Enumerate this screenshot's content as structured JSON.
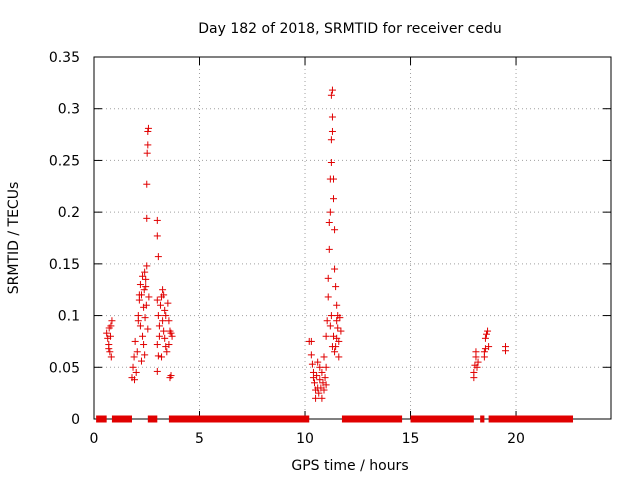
{
  "chart_data": {
    "type": "scatter",
    "title": "Day 182 of 2018, SRMTID for receiver cedu",
    "xlabel": "GPS time / hours",
    "ylabel": "SRMTID / TECUs",
    "xlim": [
      0,
      24.5
    ],
    "ylim": [
      0,
      0.35
    ],
    "x_ticks": [
      0,
      5,
      10,
      15,
      20
    ],
    "x_tick_labels": [
      "0",
      "5",
      "10",
      "15",
      "20"
    ],
    "y_ticks": [
      0,
      0.05,
      0.1,
      0.15,
      0.2,
      0.25,
      0.3,
      0.35
    ],
    "y_tick_labels": [
      "0",
      "0.05",
      "0.1",
      "0.15",
      "0.2",
      "0.25",
      "0.3",
      "0.35"
    ],
    "grid": true,
    "marker": "+",
    "color": "#e00000",
    "series": [
      {
        "name": "SRMTID",
        "points": [
          [
            0.6,
            0.083
          ],
          [
            0.65,
            0.078
          ],
          [
            0.7,
            0.072
          ],
          [
            0.72,
            0.088
          ],
          [
            0.75,
            0.065
          ],
          [
            0.8,
            0.09
          ],
          [
            0.82,
            0.06
          ],
          [
            0.85,
            0.095
          ],
          [
            0.7,
            0.068
          ],
          [
            0.78,
            0.08
          ],
          [
            1.8,
            0.04
          ],
          [
            1.85,
            0.05
          ],
          [
            1.9,
            0.06
          ],
          [
            1.95,
            0.075
          ],
          [
            2.0,
            0.045
          ],
          [
            1.92,
            0.038
          ],
          [
            2.05,
            0.065
          ],
          [
            2.1,
            0.1
          ],
          [
            2.15,
            0.115
          ],
          [
            2.2,
            0.13
          ],
          [
            2.25,
            0.12
          ],
          [
            2.3,
            0.138
          ],
          [
            2.35,
            0.108
          ],
          [
            2.4,
            0.142
          ],
          [
            2.45,
            0.135
          ],
          [
            2.2,
            0.09
          ],
          [
            2.3,
            0.08
          ],
          [
            2.35,
            0.072
          ],
          [
            2.4,
            0.062
          ],
          [
            2.25,
            0.056
          ],
          [
            2.1,
            0.095
          ],
          [
            2.15,
            0.12
          ],
          [
            2.38,
            0.125
          ],
          [
            2.45,
            0.128
          ],
          [
            2.5,
            0.148
          ],
          [
            2.5,
            0.194
          ],
          [
            2.5,
            0.227
          ],
          [
            2.52,
            0.257
          ],
          [
            2.55,
            0.265
          ],
          [
            2.55,
            0.278
          ],
          [
            2.58,
            0.281
          ],
          [
            2.55,
            0.087
          ],
          [
            2.6,
            0.118
          ],
          [
            2.48,
            0.11
          ],
          [
            2.42,
            0.098
          ],
          [
            3.0,
            0.192
          ],
          [
            3.0,
            0.177
          ],
          [
            3.05,
            0.157
          ],
          [
            3.0,
            0.115
          ],
          [
            3.05,
            0.1
          ],
          [
            3.1,
            0.09
          ],
          [
            3.0,
            0.072
          ],
          [
            3.05,
            0.061
          ],
          [
            3.0,
            0.046
          ],
          [
            3.1,
            0.08
          ],
          [
            3.2,
            0.118
          ],
          [
            3.25,
            0.125
          ],
          [
            3.3,
            0.12
          ],
          [
            3.35,
            0.105
          ],
          [
            3.4,
            0.1
          ],
          [
            3.3,
            0.085
          ],
          [
            3.35,
            0.078
          ],
          [
            3.4,
            0.07
          ],
          [
            3.45,
            0.065
          ],
          [
            3.5,
            0.112
          ],
          [
            3.55,
            0.095
          ],
          [
            3.6,
            0.085
          ],
          [
            3.65,
            0.083
          ],
          [
            3.7,
            0.08
          ],
          [
            3.55,
            0.072
          ],
          [
            3.6,
            0.04
          ],
          [
            3.65,
            0.042
          ],
          [
            3.2,
            0.06
          ],
          [
            3.15,
            0.11
          ],
          [
            3.25,
            0.095
          ],
          [
            10.2,
            0.075
          ],
          [
            10.3,
            0.062
          ],
          [
            10.35,
            0.053
          ],
          [
            10.4,
            0.045
          ],
          [
            10.45,
            0.035
          ],
          [
            10.5,
            0.028
          ],
          [
            10.5,
            0.02
          ],
          [
            10.55,
            0.042
          ],
          [
            10.6,
            0.03
          ],
          [
            10.6,
            0.055
          ],
          [
            10.65,
            0.025
          ],
          [
            10.7,
            0.038
          ],
          [
            10.75,
            0.03
          ],
          [
            10.8,
            0.045
          ],
          [
            10.8,
            0.02
          ],
          [
            10.85,
            0.035
          ],
          [
            10.9,
            0.028
          ],
          [
            10.95,
            0.04
          ],
          [
            11.0,
            0.05
          ],
          [
            11.0,
            0.033
          ],
          [
            10.4,
            0.04
          ],
          [
            10.7,
            0.05
          ],
          [
            10.9,
            0.06
          ],
          [
            10.3,
            0.075
          ],
          [
            11.0,
            0.08
          ],
          [
            11.05,
            0.095
          ],
          [
            11.1,
            0.118
          ],
          [
            11.1,
            0.136
          ],
          [
            11.15,
            0.164
          ],
          [
            11.15,
            0.19
          ],
          [
            11.2,
            0.2
          ],
          [
            11.2,
            0.232
          ],
          [
            11.25,
            0.248
          ],
          [
            11.25,
            0.27
          ],
          [
            11.3,
            0.278
          ],
          [
            11.3,
            0.292
          ],
          [
            11.3,
            0.318
          ],
          [
            11.25,
            0.313
          ],
          [
            11.35,
            0.232
          ],
          [
            11.35,
            0.213
          ],
          [
            11.4,
            0.183
          ],
          [
            11.4,
            0.145
          ],
          [
            11.45,
            0.128
          ],
          [
            11.5,
            0.11
          ],
          [
            11.5,
            0.095
          ],
          [
            11.55,
            0.088
          ],
          [
            11.6,
            0.075
          ],
          [
            11.6,
            0.06
          ],
          [
            11.65,
            0.098
          ],
          [
            11.7,
            0.085
          ],
          [
            11.2,
            0.09
          ],
          [
            11.25,
            0.1
          ],
          [
            11.3,
            0.07
          ],
          [
            11.4,
            0.065
          ],
          [
            11.45,
            0.07
          ],
          [
            11.5,
            0.078
          ],
          [
            11.55,
            0.1
          ],
          [
            11.35,
            0.08
          ],
          [
            18.0,
            0.045
          ],
          [
            18.05,
            0.052
          ],
          [
            18.1,
            0.06
          ],
          [
            18.1,
            0.065
          ],
          [
            18.0,
            0.04
          ],
          [
            18.15,
            0.05
          ],
          [
            18.2,
            0.055
          ],
          [
            18.5,
            0.06
          ],
          [
            18.55,
            0.068
          ],
          [
            18.6,
            0.082
          ],
          [
            18.55,
            0.078
          ],
          [
            18.65,
            0.085
          ],
          [
            18.7,
            0.07
          ],
          [
            18.5,
            0.065
          ],
          [
            19.5,
            0.07
          ],
          [
            19.5,
            0.066
          ]
        ],
        "zero_segments": [
          [
            0.1,
            0.6
          ],
          [
            0.85,
            1.8
          ],
          [
            2.55,
            3.0
          ],
          [
            3.55,
            10.2
          ],
          [
            11.75,
            14.6
          ],
          [
            15.0,
            18.0
          ],
          [
            18.3,
            18.5
          ],
          [
            18.7,
            22.7
          ]
        ]
      }
    ]
  }
}
